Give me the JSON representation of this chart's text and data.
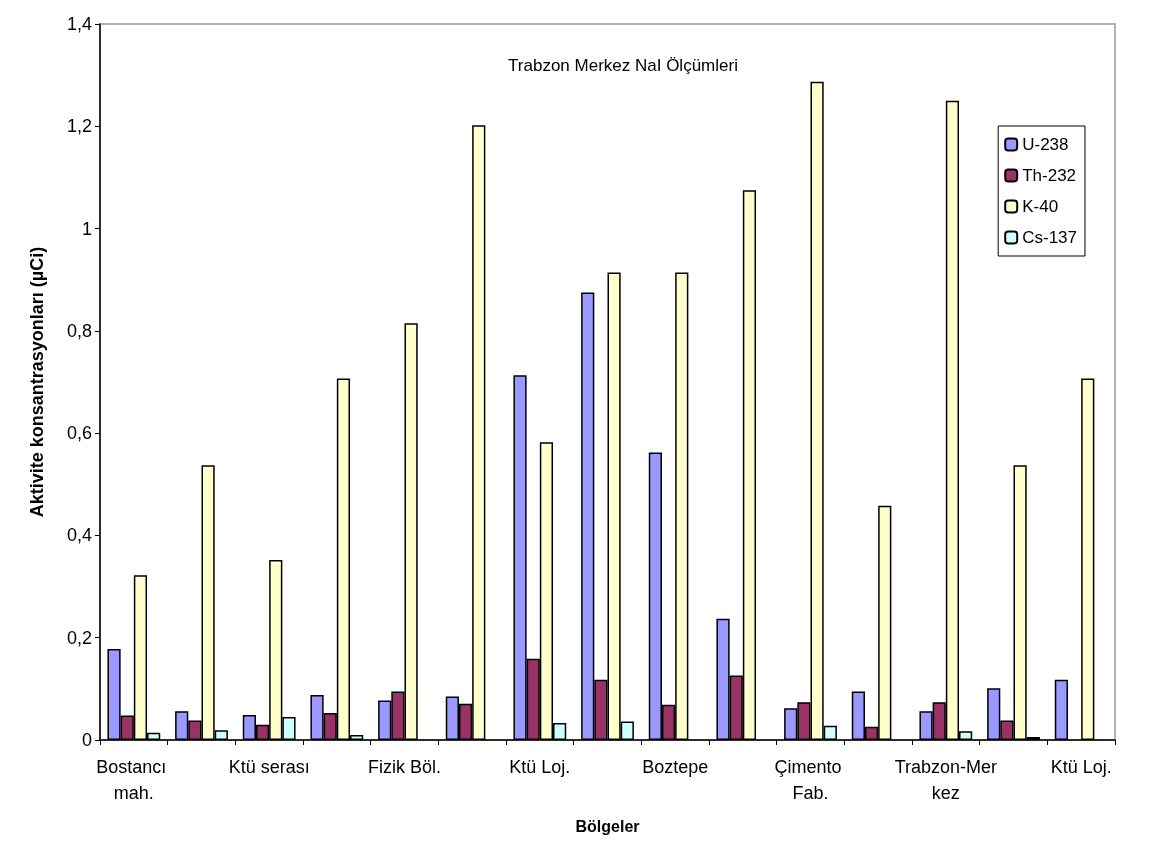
{
  "chart_data": {
    "type": "bar",
    "title": "Trabzon Merkez NaI Ölçümleri",
    "xlabel": "Bölgeler",
    "ylabel": "Aktivite konsantrasyonları (µCi)",
    "categories": [
      "Bostancı mah.",
      null,
      "Ktü serası",
      null,
      "Fizik Böl.",
      null,
      "Ktü Loj.",
      null,
      "Boztepe",
      null,
      "Çimento Fab.",
      null,
      "Trabzon-Merkez",
      null,
      "Ktü Loj."
    ],
    "series": [
      {
        "name": "U-238",
        "color": "#9999ff",
        "values": [
          0.178,
          0.056,
          0.049,
          0.088,
          0.077,
          0.085,
          0.713,
          0.875,
          0.562,
          0.237,
          0.062,
          0.095,
          0.056,
          0.101,
          0.118
        ]
      },
      {
        "name": "Th-232",
        "color": "#993366",
        "values": [
          0.048,
          0.038,
          0.03,
          0.053,
          0.095,
          0.071,
          0.159,
          0.118,
          0.069,
          0.126,
          0.074,
          0.026,
          0.074,
          0.038,
          null
        ]
      },
      {
        "name": "K-40",
        "color": "#ffffcc",
        "values": [
          0.322,
          0.537,
          0.352,
          0.707,
          0.815,
          1.202,
          0.582,
          0.914,
          0.914,
          1.075,
          1.287,
          0.458,
          1.25,
          0.537,
          0.707
        ]
      },
      {
        "name": "Cs-137",
        "color": "#ccffff",
        "values": [
          0.014,
          0.019,
          0.045,
          0.01,
          null,
          null,
          0.033,
          0.036,
          null,
          null,
          0.028,
          null,
          0.017,
          0.006,
          null
        ]
      }
    ],
    "ylim": [
      0,
      1.4
    ],
    "yticks": [
      0,
      {
        "value": 0.2,
        "label": "0,2"
      },
      {
        "value": 0.4,
        "label": "0,4"
      },
      {
        "value": 0.6,
        "label": "0,6"
      },
      {
        "value": 0.8,
        "label": "0,8"
      },
      1,
      {
        "value": 1.2,
        "label": "1,2"
      },
      {
        "value": 1.4,
        "label": "1,4"
      }
    ],
    "grid": false,
    "legend": "top right"
  }
}
